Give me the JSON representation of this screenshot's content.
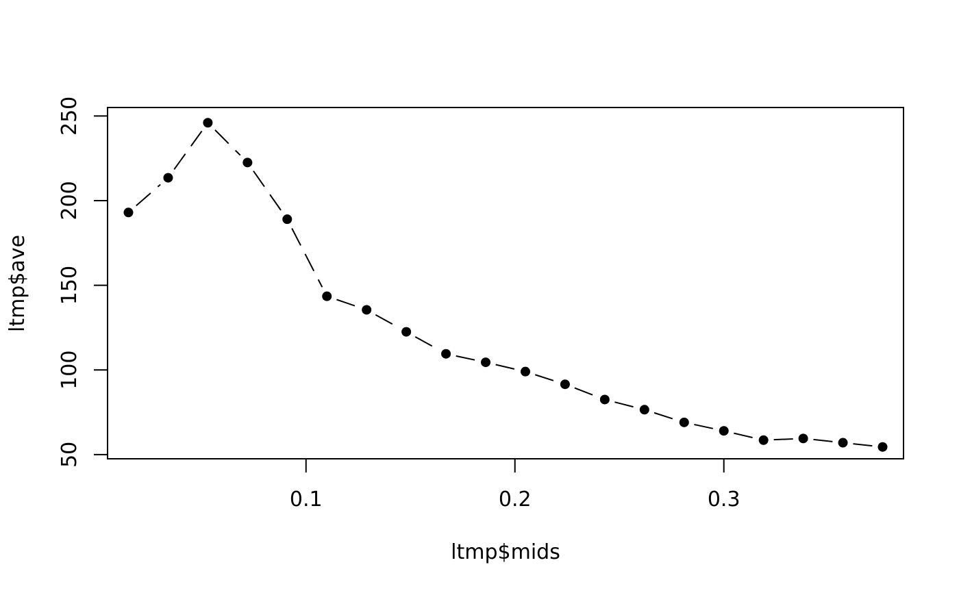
{
  "chart_data": {
    "type": "line",
    "title": "",
    "xlabel": "ltmp$mids",
    "ylabel": "ltmp$ave",
    "x": [
      0.015,
      0.034,
      0.053,
      0.072,
      0.091,
      0.11,
      0.129,
      0.148,
      0.167,
      0.186,
      0.205,
      0.224,
      0.243,
      0.262,
      0.281,
      0.3,
      0.319,
      0.338,
      0.357,
      0.376
    ],
    "series": [
      {
        "values": [
          193,
          213.5,
          246,
          222.5,
          189,
          143.5,
          135.5,
          122.5,
          109.5,
          104.5,
          99,
          91.5,
          82.5,
          76.5,
          69,
          64,
          58.5,
          59.5,
          57,
          54.5
        ]
      }
    ],
    "xticks": [
      "0.1",
      "0.2",
      "0.3"
    ],
    "yticks": [
      "50",
      "100",
      "150",
      "200",
      "250"
    ],
    "xlim": [
      0.005,
      0.386
    ],
    "ylim": [
      47.5,
      255
    ],
    "line_style": "dashed",
    "marker": "filled-circle",
    "grid": false,
    "legend": "none"
  }
}
